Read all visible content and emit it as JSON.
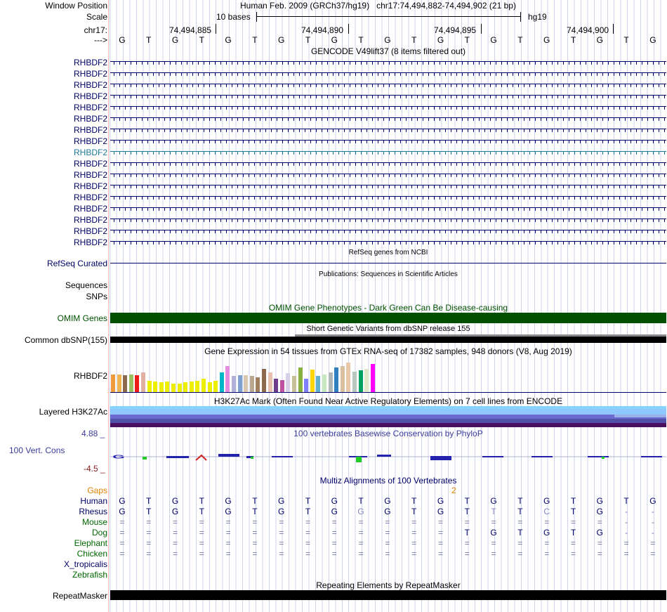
{
  "header": {
    "window_position_label": "Window Position",
    "assembly": "Human Feb. 2009 (GRCh37/hg19)",
    "position": "chr17:74,494,882-74,494,902 (21 bp)",
    "scale_label": "Scale",
    "scale_text": "10 bases",
    "db": "hg19",
    "chrom_label": "chr17:",
    "coords": [
      "74,494,885",
      "74,494,890",
      "74,494,895",
      "74,494,900"
    ],
    "strand_label": "--->",
    "bases": [
      "G",
      "T",
      "G",
      "T",
      "G",
      "T",
      "G",
      "T",
      "G",
      "T",
      "G",
      "T",
      "G",
      "T",
      "G",
      "T",
      "G",
      "T",
      "G",
      "T",
      "G"
    ]
  },
  "gencode": {
    "title": "GENCODE V49lift37 (8 items filtered out)",
    "genes": [
      "RHBDF2",
      "RHBDF2",
      "RHBDF2",
      "RHBDF2",
      "RHBDF2",
      "RHBDF2",
      "RHBDF2",
      "RHBDF2",
      "RHBDF2",
      "RHBDF2",
      "RHBDF2",
      "RHBDF2",
      "RHBDF2",
      "RHBDF2",
      "RHBDF2",
      "RHBDF2",
      "RHBDF2"
    ],
    "highlight_index": 8
  },
  "refseq": {
    "title": "RefSeq genes from NCBI",
    "label": "RefSeq Curated"
  },
  "publications": {
    "title": "Publications: Sequences in Scientific Articles",
    "label1": "Sequences",
    "label2": "SNPs"
  },
  "omim": {
    "title": "OMIM Gene Phenotypes - Dark Green Can Be Disease-causing",
    "label": "OMIM Genes"
  },
  "dbsnp": {
    "title": "Short Genetic Variants from dbSNP release 155",
    "label": "Common dbSNP(155)"
  },
  "gtex": {
    "title": "Gene Expression in 54 tissues from GTEx RNA-seq of 17382 samples, 948 donors (V8, Aug 2019)",
    "label": "RHBDF2",
    "bars": [
      {
        "h": 0.55,
        "c": "#f09a3c"
      },
      {
        "h": 0.55,
        "c": "#f0b450"
      },
      {
        "h": 0.52,
        "c": "#8e6a4c"
      },
      {
        "h": 0.55,
        "c": "#9ac060"
      },
      {
        "h": 0.52,
        "c": "#ee1b1b"
      },
      {
        "h": 0.6,
        "c": "#e0b0a0"
      },
      {
        "h": 0.35,
        "c": "#eeee00"
      },
      {
        "h": 0.32,
        "c": "#eeee00"
      },
      {
        "h": 0.3,
        "c": "#eeee00"
      },
      {
        "h": 0.32,
        "c": "#eeee00"
      },
      {
        "h": 0.25,
        "c": "#eeee00"
      },
      {
        "h": 0.27,
        "c": "#eeee00"
      },
      {
        "h": 0.3,
        "c": "#eeee00"
      },
      {
        "h": 0.32,
        "c": "#eeee00"
      },
      {
        "h": 0.35,
        "c": "#eeee00"
      },
      {
        "h": 0.42,
        "c": "#eeee00"
      },
      {
        "h": 0.3,
        "c": "#eeee00"
      },
      {
        "h": 0.35,
        "c": "#eeee00"
      },
      {
        "h": 0.6,
        "c": "#00b5c8"
      },
      {
        "h": 0.8,
        "c": "#e68ce0"
      },
      {
        "h": 0.5,
        "c": "#b0b0d8"
      },
      {
        "h": 0.52,
        "c": "#80a0d0"
      },
      {
        "h": 0.52,
        "c": "#d8c8b0"
      },
      {
        "h": 0.5,
        "c": "#b8a890"
      },
      {
        "h": 0.45,
        "c": "#a08060"
      },
      {
        "h": 0.72,
        "c": "#8e6a4c"
      },
      {
        "h": 0.6,
        "c": "#e8c0b0"
      },
      {
        "h": 0.42,
        "c": "#6e3c8c"
      },
      {
        "h": 0.38,
        "c": "#c050a0"
      },
      {
        "h": 0.58,
        "c": "#d8d0e8"
      },
      {
        "h": 0.5,
        "c": "#c8c098"
      },
      {
        "h": 0.75,
        "c": "#88b040"
      },
      {
        "h": 0.42,
        "c": "#8080ff"
      },
      {
        "h": 0.7,
        "c": "#ffd700"
      },
      {
        "h": 0.5,
        "c": "#60b0d0"
      },
      {
        "h": 0.55,
        "c": "#c8e8c0"
      },
      {
        "h": 0.6,
        "c": "#b0b8b8"
      },
      {
        "h": 0.75,
        "c": "#3080c0"
      },
      {
        "h": 0.8,
        "c": "#d8c0a0"
      },
      {
        "h": 0.92,
        "c": "#e8c8a8"
      },
      {
        "h": 0.62,
        "c": "#b8c8c0"
      },
      {
        "h": 0.68,
        "c": "#00a060"
      },
      {
        "h": 0.72,
        "c": "#e0e8c8"
      },
      {
        "h": 0.88,
        "c": "#ff00ff"
      }
    ]
  },
  "h3k27ac": {
    "title": "H3K27Ac Mark (Often Found Near Active Regulatory Elements) on 7 cell lines from ENCODE",
    "label": "Layered H3K27Ac"
  },
  "phylop": {
    "title": "100 vertebrates Basewise Conservation by PhyloP",
    "label": "100 Vert. Cons",
    "max": "4.88 _",
    "min": "-4.5 _"
  },
  "multiz": {
    "title": "Multiz Alignments of 100 Vertebrates",
    "gaps_label": "Gaps",
    "gap_count": "2",
    "species": [
      {
        "name": "Human",
        "color": "#000066",
        "seq": [
          "G",
          "T",
          "G",
          "T",
          "G",
          "T",
          "G",
          "T",
          "G",
          "T",
          "G",
          "T",
          "G",
          "T",
          "G",
          "T",
          "G",
          "T",
          "G",
          "T",
          "G"
        ]
      },
      {
        "name": "Rhesus",
        "color": "#000066",
        "seq": [
          "G",
          "T",
          "G",
          "T",
          "G",
          "T",
          "G",
          "T",
          "G",
          "G",
          "G",
          "T",
          "G",
          "T",
          "T",
          "T",
          "C",
          "T",
          "G",
          "-",
          "-"
        ]
      },
      {
        "name": "Mouse",
        "color": "#006600",
        "seq": [
          "=",
          "=",
          "=",
          "=",
          "=",
          "=",
          "=",
          "=",
          "=",
          "=",
          "=",
          "=",
          "=",
          "=",
          "=",
          "=",
          "=",
          "=",
          "=",
          "-",
          "-"
        ]
      },
      {
        "name": "Dog",
        "color": "#006600",
        "seq": [
          "=",
          "=",
          "=",
          "=",
          "=",
          "=",
          "=",
          "=",
          "=",
          "=",
          "=",
          "=",
          "=",
          "T",
          "G",
          "T",
          "G",
          "T",
          "G",
          "-",
          "-"
        ]
      },
      {
        "name": "Elephant",
        "color": "#006600",
        "seq": [
          "=",
          "=",
          "=",
          "=",
          "=",
          "=",
          "=",
          "=",
          "=",
          "=",
          "=",
          "=",
          "=",
          "=",
          "=",
          "=",
          "=",
          "=",
          "=",
          "=",
          "="
        ]
      },
      {
        "name": "Chicken",
        "color": "#006600",
        "seq": [
          "=",
          "=",
          "=",
          "=",
          "=",
          "=",
          "=",
          "=",
          "=",
          "=",
          "=",
          "=",
          "=",
          "=",
          "=",
          "=",
          "=",
          "=",
          "=",
          "=",
          "="
        ]
      },
      {
        "name": "X_tropicalis",
        "color": "#000066",
        "seq": []
      },
      {
        "name": "Zebrafish",
        "color": "#006600",
        "seq": []
      }
    ]
  },
  "repeatmasker": {
    "title": "Repeating Elements by RepeatMasker",
    "label": "RepeatMasker"
  }
}
